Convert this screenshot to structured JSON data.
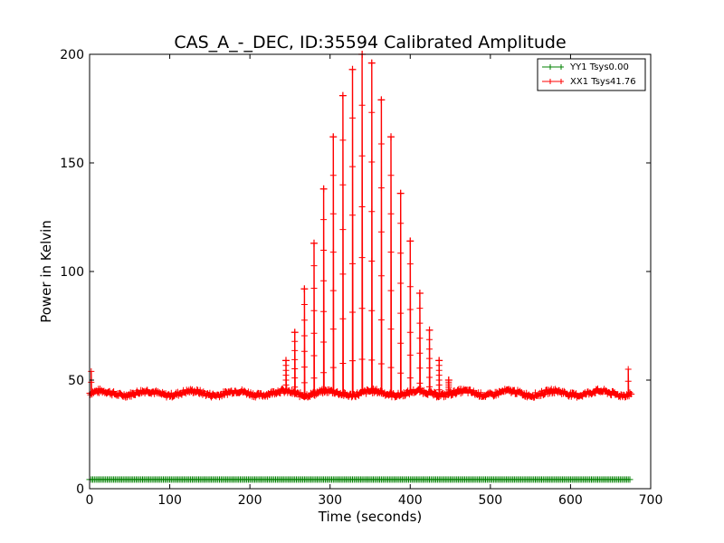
{
  "chart_data": {
    "type": "line",
    "title": "CAS_A_-_DEC, ID:35594 Calibrated Amplitude",
    "xlabel": "Time (seconds)",
    "ylabel": "Power in Kelvin",
    "xlim": [
      0,
      700
    ],
    "ylim": [
      0,
      200
    ],
    "xticks": [
      0,
      100,
      200,
      300,
      400,
      500,
      600,
      700
    ],
    "yticks": [
      0,
      50,
      100,
      150,
      200
    ],
    "legend_position": "top-right",
    "series": [
      {
        "name": "YY1 Tsys0.00",
        "color": "#008000",
        "marker": "+",
        "x_start": 0,
        "x_end": 675,
        "x_step": 2,
        "baseline": 4.2
      },
      {
        "name": "XX1 Tsys41.76",
        "color": "#ff0000",
        "marker": "+",
        "x_start": 0,
        "x_end": 676,
        "baseline": 44,
        "edge_spikes": [
          {
            "x": 2,
            "y": 54
          },
          {
            "x": 672,
            "y": 55
          }
        ],
        "peaks": [
          {
            "x": 245,
            "y": 59
          },
          {
            "x": 256,
            "y": 72
          },
          {
            "x": 268,
            "y": 92
          },
          {
            "x": 280,
            "y": 113
          },
          {
            "x": 292,
            "y": 138
          },
          {
            "x": 304,
            "y": 162
          },
          {
            "x": 316,
            "y": 181
          },
          {
            "x": 328,
            "y": 193
          },
          {
            "x": 340,
            "y": 200
          },
          {
            "x": 352,
            "y": 196
          },
          {
            "x": 364,
            "y": 179
          },
          {
            "x": 376,
            "y": 162
          },
          {
            "x": 388,
            "y": 136
          },
          {
            "x": 400,
            "y": 114
          },
          {
            "x": 412,
            "y": 90
          },
          {
            "x": 424,
            "y": 73
          },
          {
            "x": 436,
            "y": 59
          },
          {
            "x": 448,
            "y": 50
          }
        ]
      }
    ]
  }
}
